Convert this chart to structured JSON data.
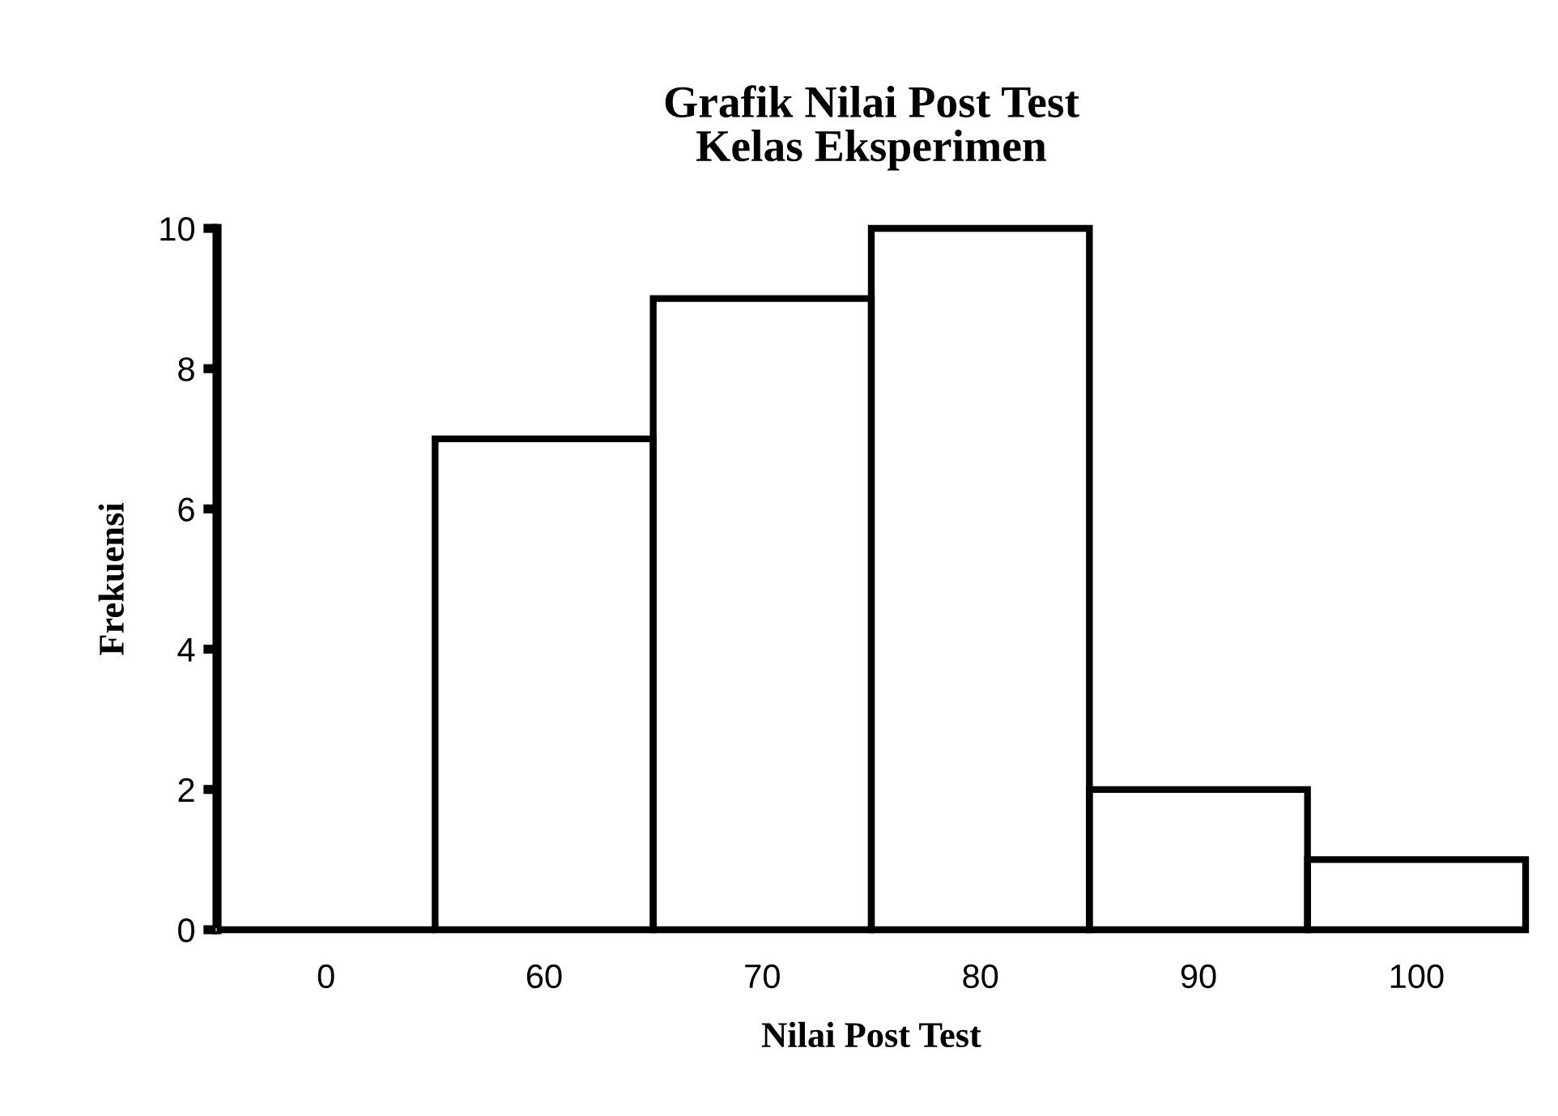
{
  "chart_data": {
    "type": "bar",
    "title": "Grafik Nilai Post Test\nKelas Eksperimen",
    "xlabel": "Nilai Post Test",
    "ylabel": "Frekuensi",
    "categories": [
      "0",
      "60",
      "70",
      "80",
      "90",
      "100"
    ],
    "values": [
      0,
      7,
      9,
      10,
      2,
      1
    ],
    "color": "#000000",
    "ylim": [
      0,
      10
    ],
    "yticks": [
      0,
      2,
      4,
      6,
      8,
      10
    ],
    "grid": false
  }
}
